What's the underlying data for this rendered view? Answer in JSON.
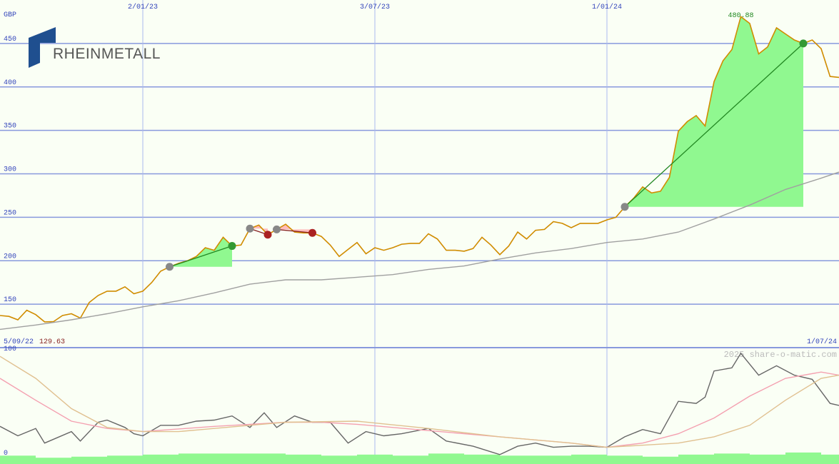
{
  "chart_data": [
    {
      "type": "line",
      "logo": "RHEINMETALL",
      "y_label": "GBP",
      "x": [
        0,
        1,
        2,
        3,
        4,
        5,
        6,
        7,
        8,
        9,
        10,
        11,
        12,
        13,
        14,
        15,
        16,
        17,
        18,
        19,
        20,
        21,
        22,
        23,
        24,
        25,
        26,
        27,
        28,
        29,
        30,
        31,
        32,
        33,
        34,
        35,
        36,
        37,
        38,
        39,
        40,
        41,
        42,
        43,
        44,
        45,
        46,
        47,
        48,
        49,
        50,
        51,
        52,
        53,
        54,
        55,
        56,
        57,
        58,
        59,
        60,
        61,
        62,
        63,
        64,
        65,
        66,
        67,
        68,
        69,
        70,
        71,
        72,
        73,
        74,
        75,
        76,
        77,
        78,
        79,
        80,
        81,
        82,
        83,
        84,
        85,
        86,
        87,
        88,
        89,
        90,
        91,
        92,
        93,
        94
      ],
      "xlim": [
        0,
        94
      ],
      "ylim": [
        100,
        500
      ],
      "yticks": [
        150,
        200,
        250,
        300,
        350,
        400,
        450
      ],
      "xticks": [
        {
          "value": 16,
          "label": "2/01/23"
        },
        {
          "value": 42,
          "label": "3/07/23"
        },
        {
          "value": 68,
          "label": "1/01/24"
        }
      ],
      "range_labels": [
        {
          "value": 0,
          "label": "5/09/22"
        },
        {
          "value": 94,
          "label": "1/07/24"
        }
      ],
      "grid": true,
      "max_color": "#228822",
      "min_color": "#882222",
      "series": [
        {
          "color": "#d08c00",
          "values": [
            137,
            136,
            132,
            143,
            138,
            129.63,
            130,
            137,
            139,
            134,
            152,
            160,
            165,
            165,
            170,
            162,
            165,
            175,
            188,
            193,
            197,
            200,
            205,
            215,
            212,
            227,
            217,
            218,
            237,
            241,
            230,
            236,
            242,
            233,
            232,
            232,
            228,
            218,
            205,
            213,
            221,
            208,
            215,
            212,
            215,
            219,
            220,
            220,
            231,
            225,
            212,
            212,
            211,
            214,
            227,
            218,
            207,
            217,
            233,
            225,
            235,
            236,
            245,
            243,
            238,
            243,
            243,
            243,
            247,
            250,
            262,
            272,
            285,
            278,
            280,
            296,
            349,
            360,
            367,
            355,
            406,
            430,
            443,
            480.88,
            473,
            438,
            446,
            468,
            461,
            454,
            450,
            454,
            444,
            412,
            411
          ]
        },
        {
          "color": "#a0a0a0",
          "x": [
            0,
            4,
            8,
            12,
            16,
            20,
            24,
            28,
            32,
            36,
            40,
            44,
            48,
            52,
            56,
            60,
            64,
            68,
            72,
            76,
            80,
            84,
            88,
            92,
            94
          ],
          "values": [
            121,
            126,
            132,
            139,
            147,
            154,
            163,
            173,
            178,
            178,
            181,
            184,
            190,
            194,
            202,
            209,
            214,
            221,
            225,
            233,
            248,
            264,
            282,
            295,
            302
          ]
        }
      ],
      "trades": [
        {
          "entry": 19,
          "exit": 26,
          "color": "#228822",
          "fill": "#90f890",
          "dot": "#339933"
        },
        {
          "entry": 28,
          "exit": 30,
          "color": "#882222",
          "fill": "#ffbbbb",
          "dot": "#aa2222"
        },
        {
          "entry": 31,
          "exit": 35,
          "color": "#882222",
          "fill": "#ffbbbb",
          "dot": "#aa2222"
        },
        {
          "entry": 70,
          "exit": 90,
          "color": "#228822",
          "fill": "#90f890",
          "dot": "#339933"
        }
      ]
    },
    {
      "type": "line",
      "watermark": "2025 share-o-matic.com",
      "xlim": [
        0,
        94
      ],
      "ylim": [
        -6,
        104
      ],
      "yticks": [
        0,
        100
      ],
      "series": [
        {
          "color": "#666666",
          "x": [
            0,
            2,
            4,
            5,
            8,
            9,
            11,
            12,
            14,
            15,
            16,
            18,
            20,
            22,
            24,
            26,
            28,
            29.6,
            31,
            33,
            35,
            37,
            39,
            41,
            43,
            45,
            48,
            50,
            53,
            56,
            58,
            60,
            62,
            64,
            66,
            68,
            70,
            72,
            74,
            76,
            78,
            79,
            80,
            82,
            83,
            85,
            87,
            89,
            91,
            93,
            94
          ],
          "values": [
            30,
            21,
            28,
            14,
            25,
            16,
            34,
            36,
            29,
            23,
            21,
            31,
            31,
            35,
            36,
            40,
            29,
            43,
            29,
            40,
            34,
            34,
            14,
            25,
            21,
            23,
            28,
            16,
            11,
            3,
            11,
            14,
            10,
            11,
            11,
            10,
            20,
            27,
            23,
            54,
            52,
            58,
            83,
            86,
            100,
            79,
            88,
            79,
            75,
            52,
            50
          ]
        },
        {
          "color": "#f4a0b0",
          "x": [
            0,
            4,
            8,
            12,
            16,
            24,
            32,
            36,
            40,
            48,
            56,
            64,
            68,
            72,
            76,
            80,
            84,
            88,
            92,
            94
          ],
          "values": [
            76,
            55,
            35,
            28,
            25,
            30,
            34,
            34,
            32,
            26,
            20,
            14,
            10,
            14,
            23,
            38,
            59,
            76,
            82,
            79
          ]
        },
        {
          "color": "#e0c090",
          "x": [
            0,
            4,
            8,
            12,
            16,
            20,
            24,
            32,
            40,
            48,
            56,
            64,
            68,
            76,
            80,
            84,
            88,
            92,
            94
          ],
          "values": [
            97,
            76,
            47,
            29,
            25,
            25,
            28,
            34,
            35,
            28,
            20,
            14,
            10,
            14,
            20,
            31,
            55,
            76,
            79
          ]
        }
      ],
      "bars": {
        "color": "#90f890",
        "width": 4,
        "x": [
          0,
          4,
          8,
          12,
          16,
          20,
          24,
          28,
          32,
          36,
          40,
          44,
          48,
          52,
          56,
          60,
          64,
          68,
          72,
          76,
          80,
          84,
          88,
          92
        ],
        "values": [
          2,
          0,
          1,
          2,
          3,
          4,
          4,
          4,
          3,
          2,
          3,
          2,
          4,
          3,
          2,
          2,
          3,
          2,
          1,
          3,
          4,
          3,
          5,
          3
        ]
      }
    }
  ]
}
